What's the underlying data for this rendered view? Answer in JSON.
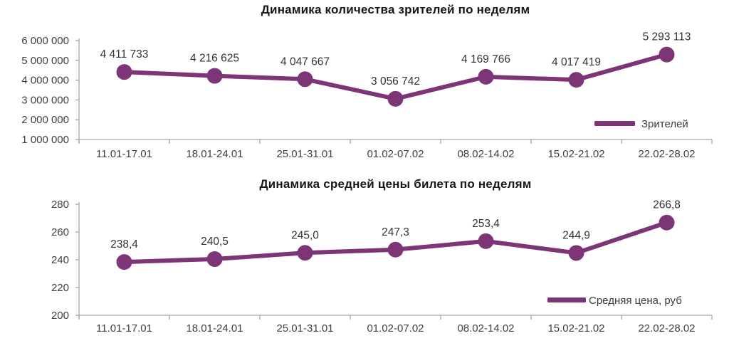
{
  "page": {
    "background": "#ffffff",
    "accent_color": "#7C3577",
    "axis_color": "#a6a6a6"
  },
  "chart_data": [
    {
      "type": "line",
      "title": "Динамика количества зрителей по неделям",
      "categories": [
        "11.01-17.01",
        "18.01-24.01",
        "25.01-31.01",
        "01.02-07.02",
        "08.02-14.02",
        "15.02-21.02",
        "22.02-28.02"
      ],
      "series": [
        {
          "name": "Зрителей",
          "color": "#7C3577",
          "values": [
            4411733,
            4216625,
            4047667,
            3056742,
            4169766,
            4017419,
            5293113
          ],
          "labels": [
            "4 411 733",
            "4 216 625",
            "4 047 667",
            "3 056 742",
            "4 169 766",
            "4 017 419",
            "5 293 113"
          ]
        }
      ],
      "ylim": [
        1000000,
        6000000
      ],
      "y_ticks": [
        {
          "v": 6000000,
          "label": "6 000 000"
        },
        {
          "v": 5000000,
          "label": "5 000 000"
        },
        {
          "v": 4000000,
          "label": "4 000 000"
        },
        {
          "v": 3000000,
          "label": "3 000 000"
        },
        {
          "v": 2000000,
          "label": "2 000 000"
        },
        {
          "v": 1000000,
          "label": "1 000 000"
        }
      ],
      "legend": {
        "label": "Зрителей",
        "position": "inside-bottom-right"
      },
      "grid": false
    },
    {
      "type": "line",
      "title": "Динамика средней цены билета по неделям",
      "categories": [
        "11.01-17.01",
        "18.01-24.01",
        "25.01-31.01",
        "01.02-07.02",
        "08.02-14.02",
        "15.02-21.02",
        "22.02-28.02"
      ],
      "series": [
        {
          "name": "Средняя цена, руб",
          "color": "#7C3577",
          "values": [
            238.4,
            240.5,
            245.0,
            247.3,
            253.4,
            244.9,
            266.8
          ],
          "labels": [
            "238,4",
            "240,5",
            "245,0",
            "247,3",
            "253,4",
            "244,9",
            "266,8"
          ]
        }
      ],
      "ylim": [
        200,
        280
      ],
      "y_ticks": [
        {
          "v": 280,
          "label": "280"
        },
        {
          "v": 260,
          "label": "260"
        },
        {
          "v": 240,
          "label": "240"
        },
        {
          "v": 220,
          "label": "220"
        },
        {
          "v": 200,
          "label": "200"
        }
      ],
      "legend": {
        "label": "Средняя цена, руб",
        "position": "inside-bottom-right"
      },
      "grid": false
    }
  ]
}
